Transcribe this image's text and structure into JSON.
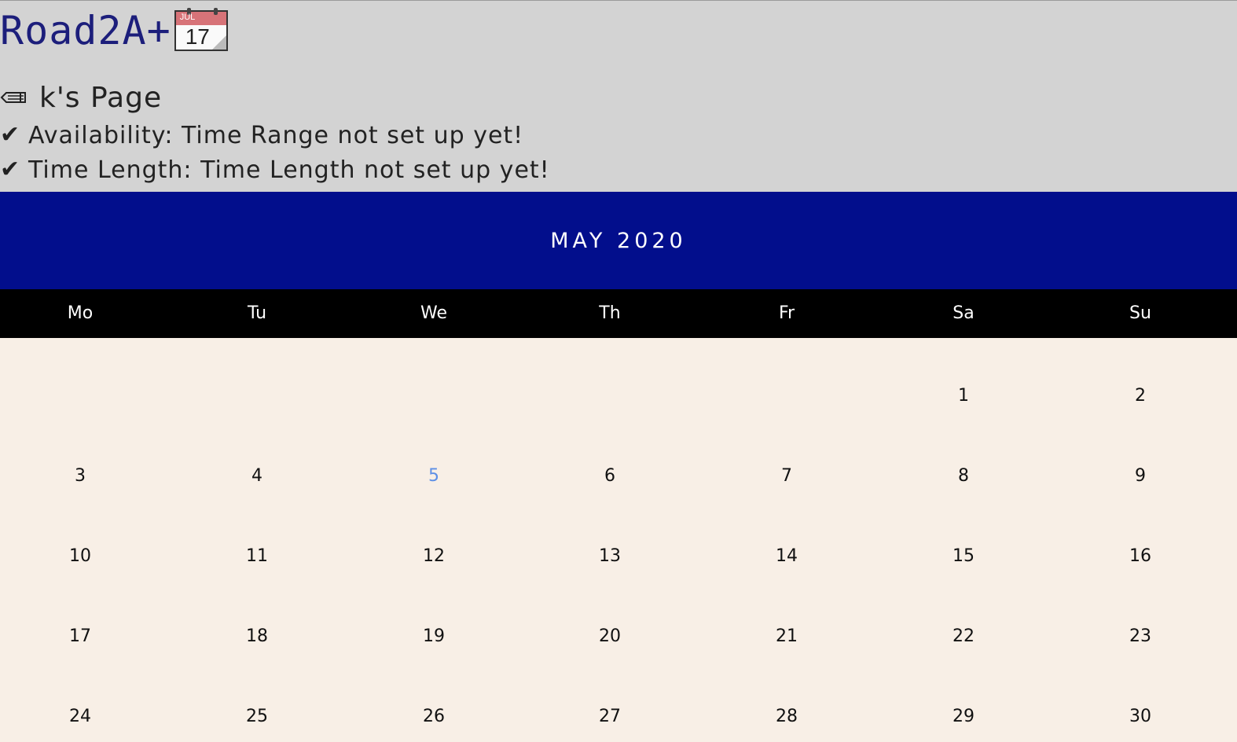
{
  "app": {
    "brand": "Road2A+",
    "calendar_icon": {
      "name": "calendar-icon",
      "month": "JUL",
      "day": "17"
    }
  },
  "user": {
    "page_title": "k's Page",
    "pencil_icon": "pencil-icon"
  },
  "status": {
    "availability": "Availability: Time Range not set up yet!",
    "time_length": "Time Length: Time Length not set up yet!",
    "check_icon": "check-icon"
  },
  "calendar": {
    "month_label": "MAY 2020",
    "weekdays": [
      "Mo",
      "Tu",
      "We",
      "Th",
      "Fr",
      "Sa",
      "Su"
    ],
    "weeks": [
      [
        "",
        "",
        "",
        "",
        "",
        "1",
        "2"
      ],
      [
        "3",
        "4",
        "5",
        "6",
        "7",
        "8",
        "9"
      ],
      [
        "10",
        "11",
        "12",
        "13",
        "14",
        "15",
        "16"
      ],
      [
        "17",
        "18",
        "19",
        "20",
        "21",
        "22",
        "23"
      ],
      [
        "24",
        "25",
        "26",
        "27",
        "28",
        "29",
        "30"
      ]
    ],
    "today": "5"
  },
  "colors": {
    "header_bg": "#d3d3d3",
    "month_bar": "#020e8c",
    "weekday_bar": "#000000",
    "calendar_bg": "#f8efe6",
    "brand_text": "#1c1e7b",
    "today_text": "#5d8fe6"
  }
}
